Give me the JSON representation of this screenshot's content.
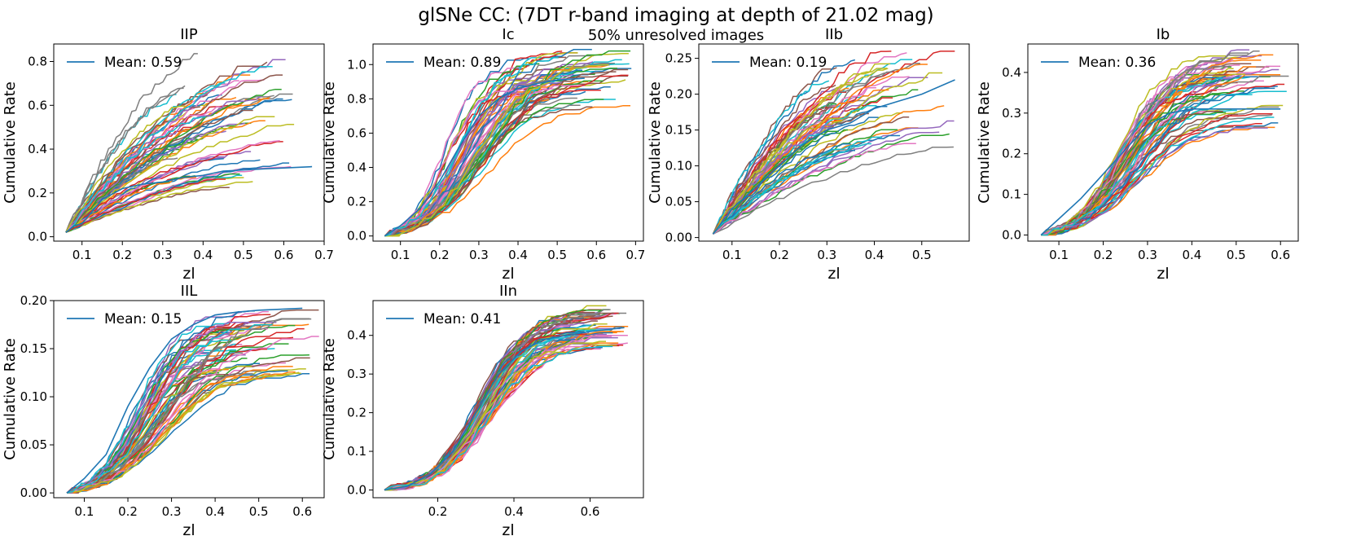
{
  "figure": {
    "title": "glSNe CC: (7DT  r-band imaging at depth of 21.02 mag)",
    "subtitle": "50% unresolved images"
  },
  "chart_data": [
    {
      "type": "line",
      "title": "IIP",
      "xlabel": "zl",
      "ylabel": "Cumulative Rate",
      "xlim": [
        0.03,
        0.7
      ],
      "ylim": [
        -0.02,
        0.88
      ],
      "xticks": [
        0.1,
        0.2,
        0.3,
        0.4,
        0.5,
        0.6,
        0.7
      ],
      "xtick_labels": [
        "0.1",
        "0.2",
        "0.3",
        "0.4",
        "0.5",
        "0.6",
        "0.7"
      ],
      "yticks": [
        0.0,
        0.2,
        0.4,
        0.6,
        0.8
      ],
      "ytick_labels": [
        "0.0",
        "0.2",
        "0.4",
        "0.6",
        "0.8"
      ],
      "legend": "Mean: 0.59",
      "legend_loc": "upper-left",
      "mean_curve": [
        [
          0.06,
          0.02
        ],
        [
          0.08,
          0.05
        ],
        [
          0.1,
          0.06
        ],
        [
          0.15,
          0.17
        ],
        [
          0.2,
          0.22
        ],
        [
          0.25,
          0.24
        ],
        [
          0.3,
          0.25
        ],
        [
          0.35,
          0.27
        ],
        [
          0.4,
          0.28
        ],
        [
          0.45,
          0.3
        ],
        [
          0.55,
          0.31
        ],
        [
          0.67,
          0.32
        ]
      ],
      "spread": {
        "x_start": 0.06,
        "y_start": 0.02,
        "x_end_range": [
          0.32,
          0.63
        ],
        "y_end_range": [
          0.22,
          0.85
        ],
        "n_curves": 60,
        "shape": "sqrt"
      }
    },
    {
      "type": "line",
      "title": "Ic",
      "xlabel": "zl",
      "ylabel": "Cumulative Rate",
      "xlim": [
        0.03,
        0.72
      ],
      "ylim": [
        -0.03,
        1.12
      ],
      "xticks": [
        0.1,
        0.2,
        0.3,
        0.4,
        0.5,
        0.6,
        0.7
      ],
      "xtick_labels": [
        "0.1",
        "0.2",
        "0.3",
        "0.4",
        "0.5",
        "0.6",
        "0.7"
      ],
      "yticks": [
        0.0,
        0.2,
        0.4,
        0.6,
        0.8,
        1.0
      ],
      "ytick_labels": [
        "0.0",
        "0.2",
        "0.4",
        "0.6",
        "0.8",
        "1.0"
      ],
      "legend": "Mean: 0.89",
      "legend_loc": "upper-left",
      "mean_curve": [
        [
          0.06,
          0.0
        ],
        [
          0.1,
          0.06
        ],
        [
          0.15,
          0.16
        ],
        [
          0.2,
          0.32
        ],
        [
          0.25,
          0.52
        ],
        [
          0.3,
          0.7
        ],
        [
          0.35,
          0.8
        ],
        [
          0.4,
          0.86
        ],
        [
          0.45,
          0.89
        ],
        [
          0.5,
          0.91
        ],
        [
          0.57,
          0.92
        ]
      ],
      "spread": {
        "x_start": 0.06,
        "y_start": 0.0,
        "x_end_range": [
          0.4,
          0.69
        ],
        "y_end_range": [
          0.75,
          1.08
        ],
        "n_curves": 60,
        "shape": "sigmoid"
      }
    },
    {
      "type": "line",
      "title": "IIb",
      "xlabel": "zl",
      "ylabel": "Cumulative Rate",
      "xlim": [
        0.03,
        0.6
      ],
      "ylim": [
        -0.005,
        0.27
      ],
      "xticks": [
        0.1,
        0.2,
        0.3,
        0.4,
        0.5
      ],
      "xtick_labels": [
        "0.1",
        "0.2",
        "0.3",
        "0.4",
        "0.5"
      ],
      "yticks": [
        0.0,
        0.05,
        0.1,
        0.15,
        0.2,
        0.25
      ],
      "ytick_labels": [
        "0.00",
        "0.05",
        "0.10",
        "0.15",
        "0.20",
        "0.25"
      ],
      "legend": "Mean: 0.19",
      "legend_loc": "upper-left",
      "mean_curve": [
        [
          0.06,
          0.005
        ],
        [
          0.1,
          0.04
        ],
        [
          0.15,
          0.07
        ],
        [
          0.2,
          0.1
        ],
        [
          0.25,
          0.13
        ],
        [
          0.3,
          0.15
        ],
        [
          0.35,
          0.16
        ],
        [
          0.4,
          0.18
        ],
        [
          0.45,
          0.19
        ],
        [
          0.5,
          0.2
        ],
        [
          0.57,
          0.22
        ]
      ],
      "spread": {
        "x_start": 0.06,
        "y_start": 0.005,
        "x_end_range": [
          0.3,
          0.57
        ],
        "y_end_range": [
          0.12,
          0.26
        ],
        "n_curves": 60,
        "shape": "sqrt"
      }
    },
    {
      "type": "line",
      "title": "Ib",
      "xlabel": "zl",
      "ylabel": "Cumulative Rate",
      "xlim": [
        0.03,
        0.64
      ],
      "ylim": [
        -0.015,
        0.47
      ],
      "xticks": [
        0.1,
        0.2,
        0.3,
        0.4,
        0.5,
        0.6
      ],
      "xtick_labels": [
        "0.1",
        "0.2",
        "0.3",
        "0.4",
        "0.5",
        "0.6"
      ],
      "yticks": [
        0.0,
        0.1,
        0.2,
        0.3,
        0.4
      ],
      "ytick_labels": [
        "0.0",
        "0.1",
        "0.2",
        "0.3",
        "0.4"
      ],
      "legend": "Mean: 0.36",
      "legend_loc": "upper-left",
      "mean_curve": [
        [
          0.06,
          0.0
        ],
        [
          0.1,
          0.04
        ],
        [
          0.15,
          0.09
        ],
        [
          0.2,
          0.15
        ],
        [
          0.25,
          0.21
        ],
        [
          0.3,
          0.27
        ],
        [
          0.35,
          0.3
        ],
        [
          0.4,
          0.31
        ],
        [
          0.45,
          0.31
        ],
        [
          0.5,
          0.31
        ],
        [
          0.6,
          0.31
        ]
      ],
      "spread": {
        "x_start": 0.06,
        "y_start": 0.0,
        "x_end_range": [
          0.45,
          0.62
        ],
        "y_end_range": [
          0.26,
          0.45
        ],
        "n_curves": 60,
        "shape": "sigmoid"
      }
    },
    {
      "type": "line",
      "title": "IIL",
      "xlabel": "zl",
      "ylabel": "Cumulative Rate",
      "xlim": [
        0.03,
        0.65
      ],
      "ylim": [
        -0.005,
        0.2
      ],
      "xticks": [
        0.1,
        0.2,
        0.3,
        0.4,
        0.5,
        0.6
      ],
      "xtick_labels": [
        "0.1",
        "0.2",
        "0.3",
        "0.4",
        "0.5",
        "0.6"
      ],
      "yticks": [
        0.0,
        0.05,
        0.1,
        0.15,
        0.2
      ],
      "ytick_labels": [
        "0.00",
        "0.05",
        "0.10",
        "0.15",
        "0.20"
      ],
      "legend": "Mean: 0.15",
      "legend_loc": "upper-left",
      "mean_curve": [
        [
          0.06,
          0.0
        ],
        [
          0.1,
          0.015
        ],
        [
          0.15,
          0.04
        ],
        [
          0.2,
          0.09
        ],
        [
          0.25,
          0.13
        ],
        [
          0.3,
          0.16
        ],
        [
          0.35,
          0.175
        ],
        [
          0.4,
          0.185
        ],
        [
          0.45,
          0.188
        ],
        [
          0.5,
          0.19
        ],
        [
          0.6,
          0.192
        ]
      ],
      "spread": {
        "x_start": 0.06,
        "y_start": 0.0,
        "x_end_range": [
          0.38,
          0.64
        ],
        "y_end_range": [
          0.12,
          0.19
        ],
        "n_curves": 60,
        "shape": "sigmoid"
      }
    },
    {
      "type": "line",
      "title": "IIn",
      "xlabel": "zl",
      "ylabel": "Cumulative Rate",
      "xlim": [
        0.03,
        0.74
      ],
      "ylim": [
        -0.02,
        0.49
      ],
      "xticks": [
        0.2,
        0.4,
        0.6
      ],
      "xtick_labels": [
        "0.2",
        "0.4",
        "0.6"
      ],
      "yticks": [
        0.0,
        0.1,
        0.2,
        0.3,
        0.4
      ],
      "ytick_labels": [
        "0.0",
        "0.1",
        "0.2",
        "0.3",
        "0.4"
      ],
      "legend": "Mean: 0.41",
      "legend_loc": "upper-left",
      "mean_curve": [
        [
          0.06,
          0.0
        ],
        [
          0.12,
          0.01
        ],
        [
          0.18,
          0.04
        ],
        [
          0.24,
          0.1
        ],
        [
          0.3,
          0.2
        ],
        [
          0.36,
          0.3
        ],
        [
          0.42,
          0.36
        ],
        [
          0.48,
          0.39
        ],
        [
          0.54,
          0.4
        ],
        [
          0.6,
          0.41
        ],
        [
          0.69,
          0.42
        ]
      ],
      "spread": {
        "x_start": 0.06,
        "y_start": 0.0,
        "x_end_range": [
          0.58,
          0.7
        ],
        "y_end_range": [
          0.36,
          0.47
        ],
        "n_curves": 60,
        "shape": "sigmoid-late"
      }
    }
  ],
  "colors": {
    "mean_line": "#1f77b4",
    "cycle": [
      "#1f77b4",
      "#ff7f0e",
      "#2ca02c",
      "#d62728",
      "#9467bd",
      "#8c564b",
      "#e377c2",
      "#7f7f7f",
      "#bcbd22",
      "#17becf"
    ]
  }
}
